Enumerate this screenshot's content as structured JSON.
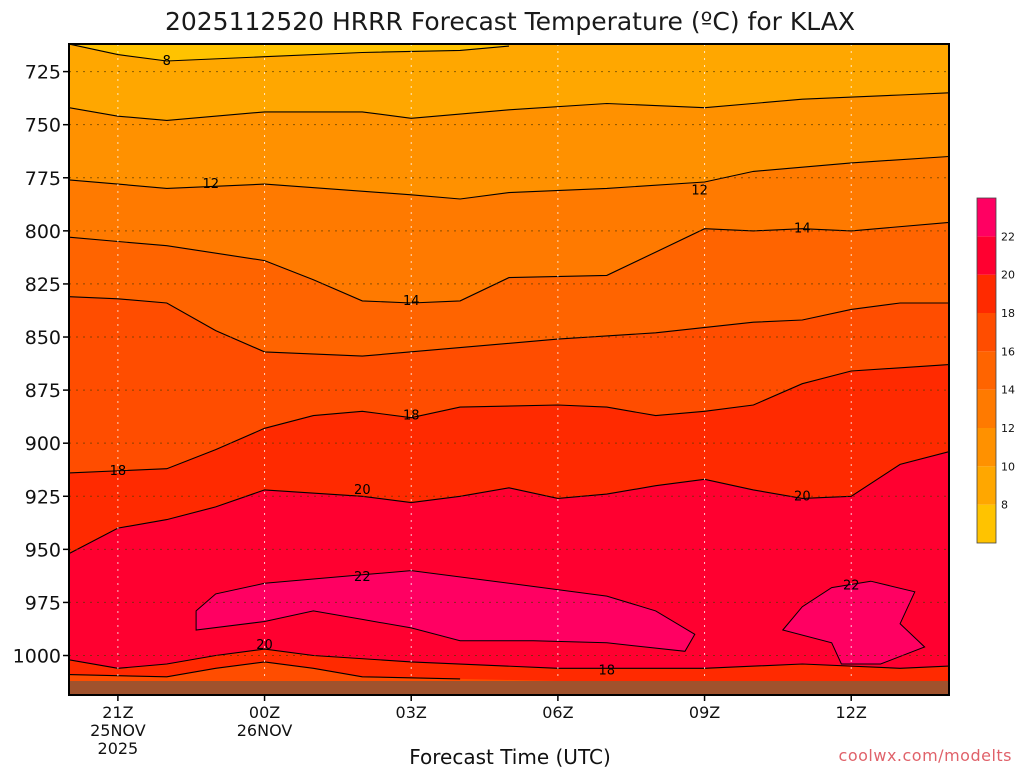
{
  "chart_data": {
    "type": "heatmap",
    "title": "2025112520 HRRR Forecast Temperature (ºC) for KLAX",
    "xlabel": "Forecast Time (UTC)",
    "x_range_hours": [
      -1,
      17
    ],
    "x_ticks": [
      {
        "hour": 0,
        "lines": [
          "21Z",
          "25NOV",
          "2025"
        ]
      },
      {
        "hour": 3,
        "lines": [
          "00Z",
          "26NOV"
        ]
      },
      {
        "hour": 6,
        "lines": [
          "03Z"
        ]
      },
      {
        "hour": 9,
        "lines": [
          "06Z"
        ]
      },
      {
        "hour": 12,
        "lines": [
          "09Z"
        ]
      },
      {
        "hour": 15,
        "lines": [
          "12Z"
        ]
      }
    ],
    "y_range_hpa": [
      712,
      1012
    ],
    "y_ticks": [
      725,
      750,
      775,
      800,
      825,
      850,
      875,
      900,
      925,
      950,
      975,
      1000
    ],
    "grid": true,
    "colorbar": {
      "levels": [
        6,
        8,
        10,
        12,
        14,
        16,
        18,
        20,
        22,
        24
      ],
      "labels": [
        8,
        10,
        12,
        14,
        16,
        18,
        20,
        22
      ],
      "colors": [
        "#ffc300",
        "#ffa700",
        "#ff9100",
        "#ff7a00",
        "#ff6400",
        "#ff4d00",
        "#ff2a00",
        "#ff0030",
        "#ff0062"
      ]
    },
    "terrain_color": "#a0522d",
    "contours": [
      {
        "value": 8,
        "points": [
          [
            -1,
            712
          ],
          [
            0,
            717
          ],
          [
            1,
            720
          ],
          [
            3,
            718
          ],
          [
            5,
            716
          ],
          [
            7,
            715
          ],
          [
            8,
            713
          ]
        ]
      },
      {
        "value": 10,
        "points": [
          [
            -1,
            742
          ],
          [
            0,
            746
          ],
          [
            1,
            748
          ],
          [
            3,
            744
          ],
          [
            5,
            744
          ],
          [
            6,
            747
          ],
          [
            8,
            743
          ],
          [
            10,
            740
          ],
          [
            12,
            742
          ],
          [
            14,
            738
          ],
          [
            16,
            736
          ],
          [
            17,
            735
          ]
        ]
      },
      {
        "value": 12,
        "points": [
          [
            -1,
            776
          ],
          [
            0,
            778
          ],
          [
            1,
            780
          ],
          [
            3,
            778
          ],
          [
            6,
            783
          ],
          [
            7,
            785
          ],
          [
            8,
            782
          ],
          [
            10,
            780
          ],
          [
            12,
            777
          ],
          [
            13,
            772
          ],
          [
            15,
            768
          ],
          [
            17,
            765
          ]
        ]
      },
      {
        "value": 14,
        "points": [
          [
            -1,
            803
          ],
          [
            0,
            805
          ],
          [
            1,
            807
          ],
          [
            3,
            814
          ],
          [
            4,
            823
          ],
          [
            5,
            833
          ],
          [
            6,
            834
          ],
          [
            7,
            833
          ],
          [
            8,
            822
          ],
          [
            10,
            821
          ],
          [
            11,
            810
          ],
          [
            12,
            799
          ],
          [
            13,
            800
          ],
          [
            14,
            799
          ],
          [
            15,
            800
          ],
          [
            17,
            796
          ]
        ]
      },
      {
        "value": 16,
        "points": [
          [
            -1,
            831
          ],
          [
            0,
            832
          ],
          [
            1,
            834
          ],
          [
            2,
            847
          ],
          [
            3,
            857
          ],
          [
            5,
            859
          ],
          [
            7,
            855
          ],
          [
            9,
            851
          ],
          [
            11,
            848
          ],
          [
            13,
            843
          ],
          [
            14,
            842
          ],
          [
            15,
            837
          ],
          [
            16,
            834
          ],
          [
            17,
            834
          ]
        ]
      },
      {
        "value": 18,
        "points": [
          [
            -1,
            914
          ],
          [
            1,
            912
          ],
          [
            2,
            903
          ],
          [
            3,
            893
          ],
          [
            4,
            887
          ],
          [
            5,
            885
          ],
          [
            6,
            888
          ],
          [
            7,
            883
          ],
          [
            9,
            882
          ],
          [
            10,
            883
          ],
          [
            11,
            887
          ],
          [
            12,
            885
          ],
          [
            13,
            882
          ],
          [
            14,
            872
          ],
          [
            15,
            866
          ],
          [
            17,
            863
          ]
        ]
      },
      {
        "value": 20,
        "points": [
          [
            -1,
            952
          ],
          [
            0,
            940
          ],
          [
            1,
            936
          ],
          [
            2,
            930
          ],
          [
            3,
            922
          ],
          [
            5,
            925
          ],
          [
            6,
            928
          ],
          [
            7,
            925
          ],
          [
            8,
            921
          ],
          [
            9,
            926
          ],
          [
            10,
            924
          ],
          [
            11,
            920
          ],
          [
            12,
            917
          ],
          [
            13,
            922
          ],
          [
            14,
            926
          ],
          [
            15,
            925
          ],
          [
            16,
            910
          ],
          [
            17,
            904
          ]
        ]
      },
      {
        "value": 22,
        "points": [
          [
            1.6,
            979
          ],
          [
            2,
            971
          ],
          [
            3,
            966
          ],
          [
            5,
            962
          ],
          [
            6,
            960
          ],
          [
            8,
            966
          ],
          [
            10,
            972
          ],
          [
            11,
            979
          ],
          [
            11.8,
            990
          ],
          [
            11.6,
            998
          ],
          [
            10,
            994
          ],
          [
            8.5,
            993
          ],
          [
            7,
            993
          ],
          [
            6,
            987
          ],
          [
            5,
            983
          ],
          [
            4,
            979
          ],
          [
            3,
            984
          ],
          [
            1.6,
            988
          ],
          [
            1.6,
            979
          ]
        ]
      },
      {
        "value": 22.5,
        "points": [
          [
            13.6,
            988
          ],
          [
            14,
            977
          ],
          [
            14.6,
            968
          ],
          [
            15.4,
            965
          ],
          [
            16.3,
            970
          ],
          [
            16,
            985
          ],
          [
            16.5,
            996
          ],
          [
            15.6,
            1004
          ],
          [
            14.8,
            1004
          ],
          [
            14.6,
            994
          ],
          [
            13.6,
            988
          ]
        ]
      }
    ],
    "contour_labels": [
      {
        "value": 8,
        "hour": 1,
        "hpa": 720
      },
      {
        "value": 12,
        "hour": 1.9,
        "hpa": 778
      },
      {
        "value": 12,
        "hour": 11.9,
        "hpa": 781
      },
      {
        "value": 14,
        "hour": 6,
        "hpa": 833
      },
      {
        "value": 14,
        "hour": 14.0,
        "hpa": 799
      },
      {
        "value": 18,
        "hour": 0,
        "hpa": 913
      },
      {
        "value": 18,
        "hour": 6,
        "hpa": 887
      },
      {
        "value": 18,
        "hour": 10.0,
        "hpa": 1007
      },
      {
        "value": 20,
        "hour": 5,
        "hpa": 922
      },
      {
        "value": 20,
        "hour": 3,
        "hpa": 995
      },
      {
        "value": 20,
        "hour": 14.0,
        "hpa": 925
      },
      {
        "value": 22,
        "hour": 5,
        "hpa": 963
      },
      {
        "value": 22,
        "hour": 15.0,
        "hpa": 967
      }
    ]
  },
  "watermark": "coolwx.com/modelts"
}
